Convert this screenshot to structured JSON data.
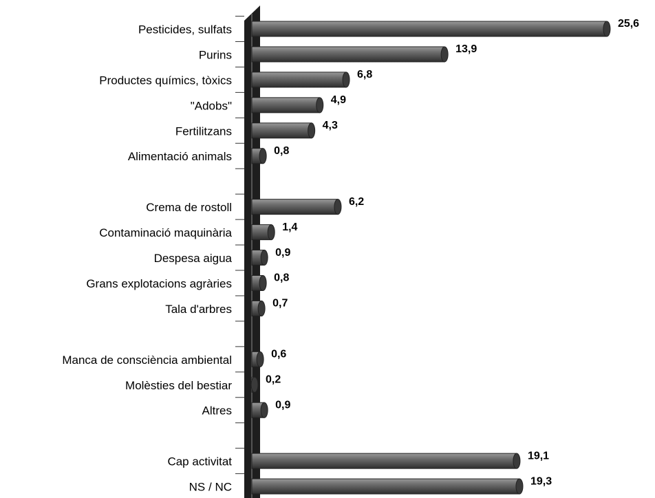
{
  "chart_data": {
    "type": "bar",
    "orientation": "horizontal",
    "categories": [
      "Pesticides, sulfats",
      "Purins",
      "Productes químics, tòxics",
      "\"Adobs\"",
      "Fertilitzans",
      "Alimentació animals",
      null,
      "Crema de rostoll",
      "Contaminació maquinària",
      "Despesa aigua",
      "Grans explotacions agràries",
      "Tala d'arbres",
      null,
      "Manca de consciència ambiental",
      "Molèsties del bestiar",
      "Altres",
      null,
      "Cap activitat",
      "NS / NC"
    ],
    "values": [
      25.6,
      13.9,
      6.8,
      4.9,
      4.3,
      0.8,
      null,
      6.2,
      1.4,
      0.9,
      0.8,
      0.7,
      null,
      0.6,
      0.2,
      0.9,
      null,
      19.1,
      19.3
    ],
    "value_labels": [
      "25,6",
      "13,9",
      "6,8",
      "4,9",
      "4,3",
      "0,8",
      null,
      "6,2",
      "1,4",
      "0,9",
      "0,8",
      "0,7",
      null,
      "0,6",
      "0,2",
      "0,9",
      null,
      "19,1",
      "19,3"
    ],
    "color": "#5a5a5a",
    "xlim": [
      0,
      26
    ]
  }
}
